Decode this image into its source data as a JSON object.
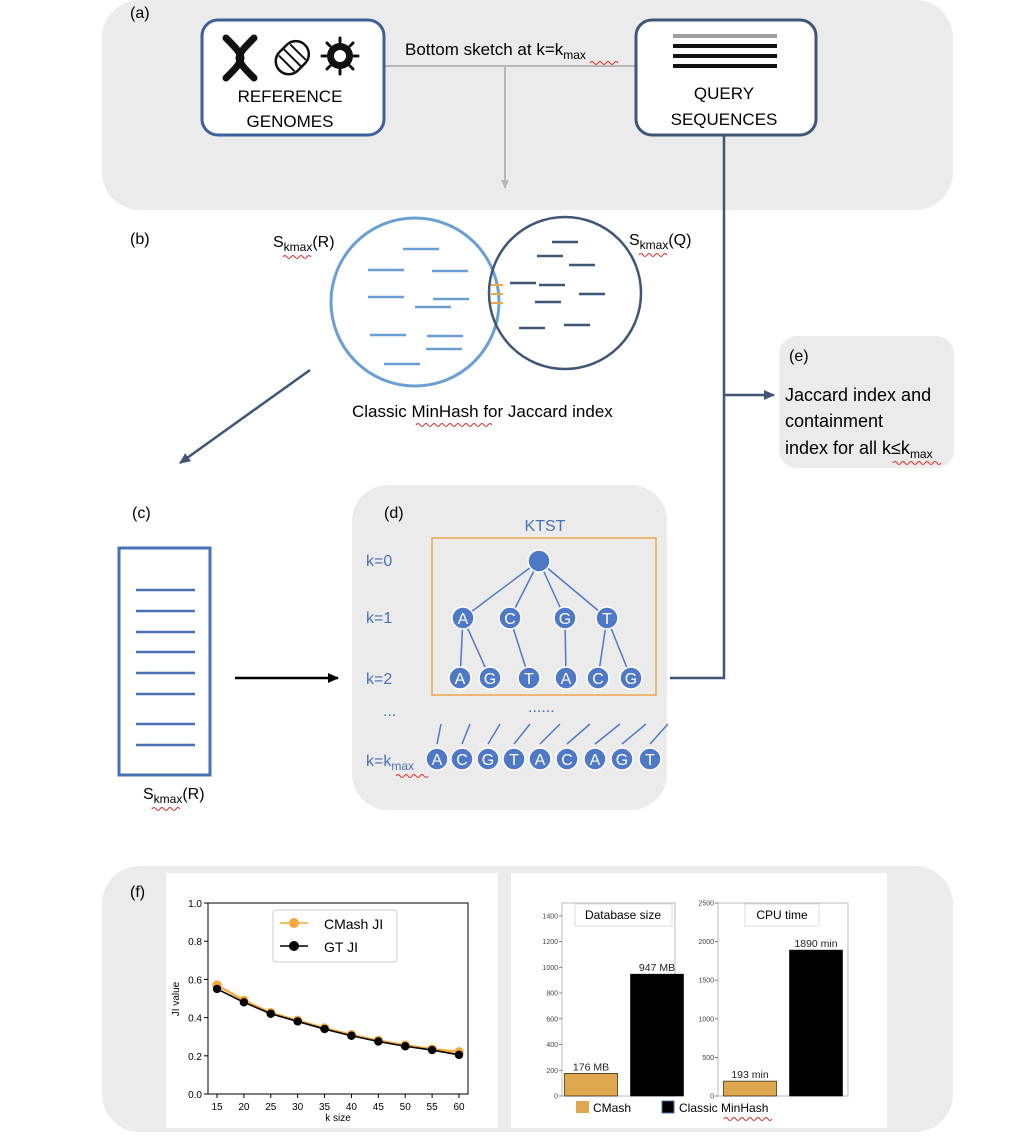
{
  "panels": {
    "a": "(a)",
    "b": "(b)",
    "c": "(c)",
    "d": "(d)",
    "e": "(e)",
    "f": "(f)"
  },
  "panel_a": {
    "ref_line1": "REFERENCE",
    "ref_line2": "GENOMES",
    "query_line1": "QUERY",
    "query_line2": "SEQUENCES",
    "sketch_prefix": "Bottom sketch at k=k",
    "sketch_sub": "max",
    "icons": [
      "chromosome-icon",
      "bacterium-icon",
      "virus-icon"
    ]
  },
  "panel_b": {
    "sr_main": "S",
    "sr_sub": "kmax",
    "sr_suffix": "(R)",
    "sq_main": "S",
    "sq_sub": "kmax",
    "sq_suffix": "(Q)",
    "caption_pre": "Classic ",
    "caption_word": "MinHash",
    "caption_post": " for Jaccard index"
  },
  "panel_c": {
    "label_main": "S",
    "label_sub": "kmax",
    "label_suffix": "(R)"
  },
  "panel_d": {
    "title": "KTST",
    "k0": "k=0",
    "k1": "k=1",
    "k2": "k=2",
    "kdots": "...",
    "kmax_prefix": "k=k",
    "kmax_sub": "max",
    "mid_dots": "......",
    "level1": [
      "A",
      "C",
      "G",
      "T"
    ],
    "level2": [
      "A",
      "G",
      "T",
      "A",
      "C",
      "G"
    ],
    "leaves": [
      "A",
      "C",
      "G",
      "T",
      "A",
      "C",
      "A",
      "G",
      "T"
    ]
  },
  "panel_e": {
    "line1": "Jaccard index and",
    "line2": "containment",
    "line3_prefix": "index for all k≤k",
    "line3_sub": "max"
  },
  "colors": {
    "panel_bg": "#ebebeb",
    "dark_blue": "#3f5677",
    "mid_blue": "#4a70b5",
    "light_blue": "#6a9fd4",
    "node_fill": "#4f79c7",
    "orange": "#eda64a",
    "bar_orange": "#e0a84e"
  },
  "charts": {
    "line": {
      "y_ticks": [
        "0.0",
        "0.2",
        "0.4",
        "0.6",
        "0.8",
        "1.0"
      ],
      "x_ticks": [
        "15",
        "20",
        "25",
        "30",
        "35",
        "40",
        "45",
        "50",
        "55",
        "60"
      ],
      "xlabel": "k size",
      "ylabel": "JI value",
      "legend_cmash": "CMash JI",
      "legend_gt": "GT JI"
    },
    "db": {
      "title": "Database size",
      "y_ticks": [
        "0",
        "200",
        "400",
        "600",
        "800",
        "1000",
        "1200",
        "1400"
      ],
      "cmash_label": "176 MB",
      "classic_label": "947 MB"
    },
    "cpu": {
      "title": "CPU time",
      "y_ticks": [
        "0",
        "500",
        "1000",
        "1500",
        "2000",
        "2500"
      ],
      "cmash_label": "193 min",
      "classic_label": "1890 min"
    },
    "bar_legend": {
      "cmash": "CMash",
      "classic_pre": "Classic ",
      "classic_word": "MinHash"
    }
  },
  "chart_data": [
    {
      "type": "line",
      "x": [
        15,
        20,
        25,
        30,
        35,
        40,
        45,
        50,
        55,
        60
      ],
      "series": [
        {
          "name": "CMash JI",
          "color": "#f5a93a",
          "values": [
            0.57,
            0.49,
            0.425,
            0.385,
            0.345,
            0.31,
            0.28,
            0.255,
            0.235,
            0.22
          ]
        },
        {
          "name": "GT JI",
          "color": "#000000",
          "values": [
            0.55,
            0.48,
            0.42,
            0.38,
            0.34,
            0.305,
            0.275,
            0.25,
            0.23,
            0.205
          ]
        }
      ],
      "xlabel": "k size",
      "ylabel": "JI value",
      "ylim": [
        0,
        1.0
      ],
      "legend": "top-center"
    },
    {
      "type": "bar",
      "title": "Database size",
      "categories": [
        "CMash",
        "Classic MinHash"
      ],
      "values": [
        176,
        947
      ],
      "units": "MB",
      "ylim": [
        0,
        1500
      ]
    },
    {
      "type": "bar",
      "title": "CPU time",
      "categories": [
        "CMash",
        "Classic MinHash"
      ],
      "values": [
        193,
        1890
      ],
      "units": "min",
      "ylim": [
        0,
        2500
      ]
    }
  ]
}
